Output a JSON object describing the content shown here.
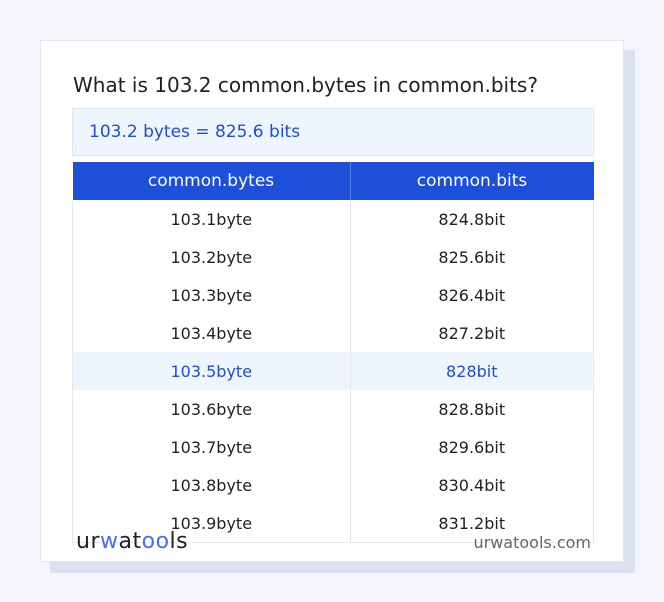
{
  "title": "What is 103.2 common.bytes in common.bits?",
  "result": "103.2 bytes = 825.6 bits",
  "table": {
    "headers": [
      "common.bytes",
      "common.bits"
    ],
    "rows": [
      [
        "103.1byte",
        "824.8bit"
      ],
      [
        "103.2byte",
        "825.6bit"
      ],
      [
        "103.3byte",
        "826.4bit"
      ],
      [
        "103.4byte",
        "827.2bit"
      ],
      [
        "103.5byte",
        "828bit"
      ],
      [
        "103.6byte",
        "828.8bit"
      ],
      [
        "103.7byte",
        "829.6bit"
      ],
      [
        "103.8byte",
        "830.4bit"
      ],
      [
        "103.9byte",
        "831.2bit"
      ]
    ],
    "highlighted_row": 4
  },
  "footer": {
    "logo": "urwatools",
    "site": "urwatools.com"
  },
  "colors": {
    "accent": "#1d4fd8",
    "highlight_bg": "#eef5fe"
  }
}
